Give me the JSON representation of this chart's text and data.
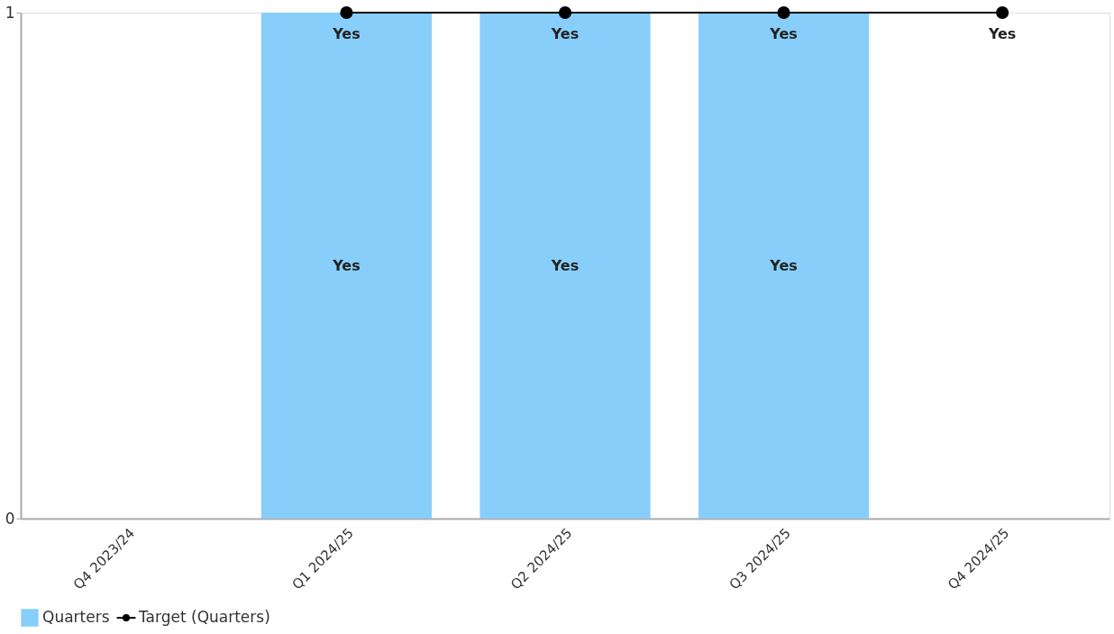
{
  "chart_data": {
    "type": "bar",
    "categories": [
      "Q4 2023/24",
      "Q1 2024/25",
      "Q2 2024/25",
      "Q3 2024/25",
      "Q4 2024/25"
    ],
    "ylim": [
      0,
      1
    ],
    "yticks": [
      0,
      1
    ],
    "grid": false,
    "legend": "bottom",
    "marker": "circle",
    "series": [
      {
        "name": "Quarters",
        "color": "#87cefa",
        "values": [
          null,
          1,
          1,
          1,
          null
        ],
        "value_labels": [
          null,
          "Yes",
          "Yes",
          "Yes",
          null
        ]
      },
      {
        "name": "Target (Quarters)",
        "type": "line",
        "color": "#000000",
        "values": [
          null,
          1,
          1,
          1,
          1
        ],
        "value_labels": [
          null,
          "Yes",
          "Yes",
          "Yes",
          "Yes"
        ]
      }
    ]
  }
}
